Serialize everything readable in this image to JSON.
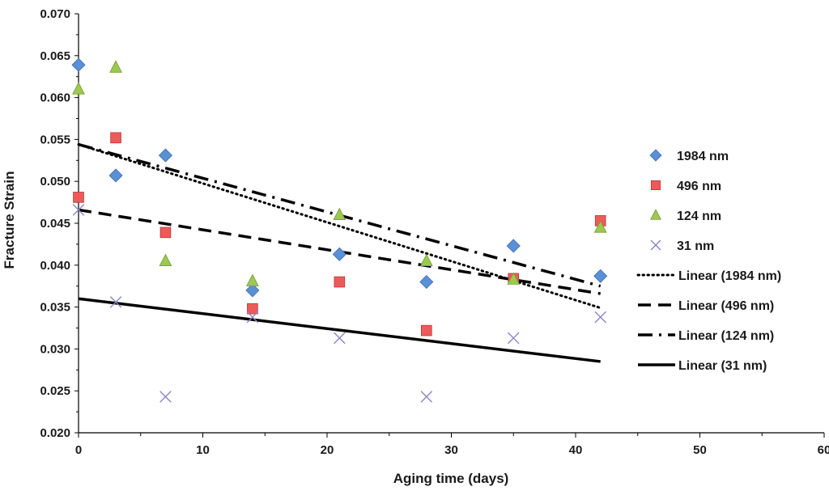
{
  "chart_data": {
    "type": "scatter",
    "xlabel": "Aging time (days)",
    "ylabel": "Fracture Strain",
    "xlim": [
      0,
      60
    ],
    "ylim": [
      0.02,
      0.07
    ],
    "xticks": [
      "0",
      "10",
      "20",
      "30",
      "40",
      "50",
      "60"
    ],
    "yticks": [
      "0.020",
      "0.025",
      "0.030",
      "0.035",
      "0.040",
      "0.045",
      "0.050",
      "0.055",
      "0.060",
      "0.065",
      "0.070"
    ],
    "grid": false,
    "legend_position": "right",
    "series": [
      {
        "name": "1984 nm",
        "marker": "diamond",
        "color": "#5b8fd6",
        "x": [
          0,
          3,
          7,
          14,
          21,
          28,
          35,
          42
        ],
        "y": [
          0.0639,
          0.0507,
          0.0531,
          0.037,
          0.0413,
          0.038,
          0.0423,
          0.0387
        ]
      },
      {
        "name": "496 nm",
        "marker": "square",
        "color": "#ee5a5a",
        "x": [
          0,
          3,
          7,
          14,
          21,
          28,
          35,
          42
        ],
        "y": [
          0.0481,
          0.0552,
          0.0439,
          0.0348,
          0.038,
          0.0322,
          0.0384,
          0.0453
        ]
      },
      {
        "name": "124 nm",
        "marker": "triangle",
        "color": "#9dc94f",
        "x": [
          0,
          3,
          7,
          14,
          21,
          28,
          35,
          42
        ],
        "y": [
          0.061,
          0.0636,
          0.0405,
          0.0381,
          0.046,
          0.0405,
          0.0383,
          0.0445
        ]
      },
      {
        "name": "31 nm",
        "marker": "x",
        "color": "#8a86c4",
        "x": [
          0,
          3,
          7,
          14,
          21,
          28,
          35,
          42
        ],
        "y": [
          0.0466,
          0.0356,
          0.0243,
          0.0338,
          0.0313,
          0.0243,
          0.0313,
          0.0338
        ]
      }
    ],
    "trendlines": [
      {
        "name": "Linear (1984 nm)",
        "style": "dotted",
        "x": [
          0,
          42
        ],
        "y": [
          0.0544,
          0.0349
        ]
      },
      {
        "name": "Linear (496 nm)",
        "style": "dashed",
        "x": [
          0,
          42
        ],
        "y": [
          0.0466,
          0.0366
        ]
      },
      {
        "name": "Linear (124 nm)",
        "style": "dashdot",
        "x": [
          0,
          42
        ],
        "y": [
          0.0544,
          0.0375
        ]
      },
      {
        "name": "Linear (31 nm)",
        "style": "solid",
        "x": [
          0,
          42
        ],
        "y": [
          0.036,
          0.0285
        ]
      }
    ]
  }
}
